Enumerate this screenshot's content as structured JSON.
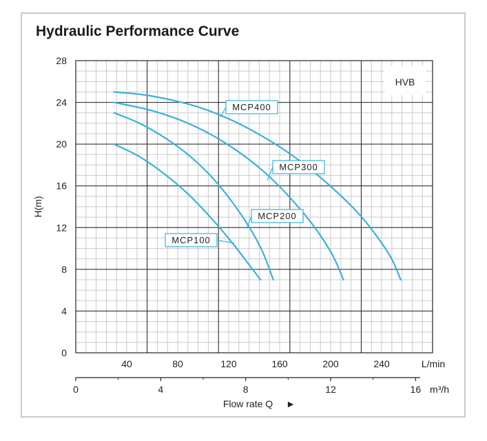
{
  "chart_data": {
    "type": "line",
    "title": "Hydraulic Performance Curve",
    "tag": "HVB",
    "ylabel": "H(m)",
    "xlabel": "Flow rate Q",
    "x_unit_primary": "L/min",
    "x_unit_secondary": "m³/h",
    "ylim": [
      0,
      28
    ],
    "xlim": [
      0,
      280
    ],
    "secondary_xlim": [
      0,
      16.8
    ],
    "y_ticks": [
      0,
      4,
      8,
      12,
      16,
      20,
      24,
      28
    ],
    "x_ticks": [
      40,
      80,
      120,
      160,
      200,
      240
    ],
    "secondary_x_ticks": [
      0,
      4,
      8,
      12,
      16
    ],
    "grid": true,
    "series": [
      {
        "name": "MCP100",
        "x": [
          30,
          50,
          70,
          90,
          110,
          125,
          135,
          145
        ],
        "y": [
          20,
          18.8,
          17.1,
          15.0,
          12.4,
          10.2,
          8.6,
          7.0
        ]
      },
      {
        "name": "MCP200",
        "x": [
          30,
          50,
          70,
          90,
          110,
          130,
          145,
          155
        ],
        "y": [
          23,
          22.0,
          20.6,
          18.8,
          16.4,
          13.2,
          10.1,
          7.0
        ]
      },
      {
        "name": "MCP300",
        "x": [
          30,
          60,
          90,
          120,
          150,
          180,
          200,
          210
        ],
        "y": [
          24,
          23.2,
          21.9,
          19.9,
          17.1,
          13.2,
          9.7,
          7.0
        ]
      },
      {
        "name": "MCP400",
        "x": [
          30,
          60,
          100,
          140,
          180,
          220,
          245,
          255
        ],
        "y": [
          25,
          24.6,
          23.4,
          21.2,
          18.0,
          13.6,
          9.6,
          7.0
        ]
      }
    ],
    "labels": {
      "MCP100": "MCP100",
      "MCP200": "MCP200",
      "MCP300": "MCP300",
      "MCP400": "MCP400"
    },
    "arrow_glyph": "►"
  },
  "colors": {
    "curve": "#39b0dd",
    "grid_major": "#222222",
    "grid_minor": "#c9c9c9",
    "frame": "#c9c9c9"
  }
}
